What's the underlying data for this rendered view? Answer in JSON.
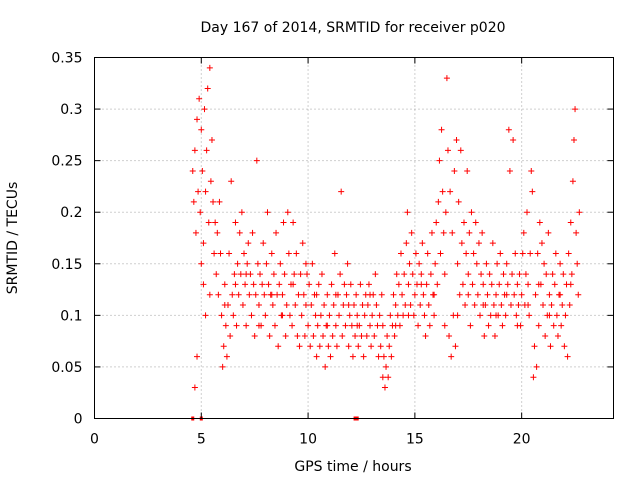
{
  "chart_data": {
    "type": "scatter",
    "title": "Day 167 of 2014, SRMTID for receiver p020",
    "xlabel": "GPS time / hours",
    "ylabel": "SRMTID / TECUs",
    "xlim": [
      0,
      24.3
    ],
    "ylim": [
      0,
      0.35
    ],
    "xticks": [
      0,
      5,
      10,
      15,
      20
    ],
    "xtick_labels": [
      "0",
      "5",
      "10",
      "15",
      "20"
    ],
    "yticks": [
      0,
      0.05,
      0.1,
      0.15,
      0.2,
      0.25,
      0.3,
      0.35
    ],
    "ytick_labels": [
      "0",
      "0.05",
      "0.1",
      "0.15",
      "0.2",
      "0.25",
      "0.3",
      "0.35"
    ],
    "grid": true,
    "marker": "plus",
    "series_color": "#ff0000",
    "points": [
      [
        4.6,
        0.24
      ],
      [
        4.65,
        0.21
      ],
      [
        4.7,
        0.26
      ],
      [
        4.75,
        0.18
      ],
      [
        4.8,
        0.29
      ],
      [
        4.85,
        0.22
      ],
      [
        4.9,
        0.31
      ],
      [
        4.95,
        0.2
      ],
      [
        5.0,
        0.28
      ],
      [
        5.05,
        0.24
      ],
      [
        5.1,
        0.17
      ],
      [
        5.15,
        0.3
      ],
      [
        5.2,
        0.22
      ],
      [
        5.25,
        0.26
      ],
      [
        5.3,
        0.32
      ],
      [
        5.35,
        0.19
      ],
      [
        5.4,
        0.34
      ],
      [
        5.45,
        0.23
      ],
      [
        5.5,
        0.27
      ],
      [
        5.55,
        0.21
      ],
      [
        5.6,
        0.16
      ],
      [
        5.65,
        0.19
      ],
      [
        5.7,
        0.14
      ],
      [
        5.75,
        0.18
      ],
      [
        5.8,
        0.12
      ],
      [
        5.85,
        0.21
      ],
      [
        5.9,
        0.16
      ],
      [
        5.95,
        0.1
      ],
      [
        6.0,
        0.05
      ],
      [
        6.05,
        0.07
      ],
      [
        6.1,
        0.13
      ],
      [
        6.15,
        0.09
      ],
      [
        6.2,
        0.06
      ],
      [
        6.25,
        0.11
      ],
      [
        6.3,
        0.16
      ],
      [
        6.35,
        0.08
      ],
      [
        6.4,
        0.23
      ],
      [
        6.45,
        0.12
      ],
      [
        6.5,
        0.1
      ],
      [
        6.55,
        0.14
      ],
      [
        6.6,
        0.19
      ],
      [
        6.65,
        0.09
      ],
      [
        6.7,
        0.15
      ],
      [
        6.75,
        0.12
      ],
      [
        6.8,
        0.18
      ],
      [
        6.85,
        0.14
      ],
      [
        6.9,
        0.2
      ],
      [
        6.95,
        0.11
      ],
      [
        7.0,
        0.16
      ],
      [
        7.05,
        0.13
      ],
      [
        7.1,
        0.09
      ],
      [
        7.15,
        0.15
      ],
      [
        7.2,
        0.17
      ],
      [
        7.25,
        0.12
      ],
      [
        7.3,
        0.14
      ],
      [
        7.35,
        0.1
      ],
      [
        7.4,
        0.18
      ],
      [
        7.45,
        0.13
      ],
      [
        7.5,
        0.08
      ],
      [
        7.55,
        0.12
      ],
      [
        7.6,
        0.25
      ],
      [
        7.65,
        0.15
      ],
      [
        7.7,
        0.11
      ],
      [
        7.75,
        0.14
      ],
      [
        7.8,
        0.09
      ],
      [
        7.85,
        0.13
      ],
      [
        7.9,
        0.17
      ],
      [
        7.95,
        0.12
      ],
      [
        8.0,
        0.1
      ],
      [
        8.05,
        0.15
      ],
      [
        8.1,
        0.2
      ],
      [
        8.15,
        0.13
      ],
      [
        8.2,
        0.08
      ],
      [
        8.25,
        0.12
      ],
      [
        8.3,
        0.16
      ],
      [
        8.35,
        0.11
      ],
      [
        8.4,
        0.14
      ],
      [
        8.45,
        0.09
      ],
      [
        8.5,
        0.18
      ],
      [
        8.55,
        0.12
      ],
      [
        8.6,
        0.07
      ],
      [
        8.65,
        0.13
      ],
      [
        8.7,
        0.15
      ],
      [
        8.75,
        0.1
      ],
      [
        8.8,
        0.12
      ],
      [
        8.85,
        0.19
      ],
      [
        8.9,
        0.14
      ],
      [
        8.95,
        0.08
      ],
      [
        9.0,
        0.11
      ],
      [
        9.05,
        0.2
      ],
      [
        9.1,
        0.16
      ],
      [
        9.15,
        0.1
      ],
      [
        9.2,
        0.13
      ],
      [
        9.25,
        0.09
      ],
      [
        9.3,
        0.19
      ],
      [
        9.35,
        0.14
      ],
      [
        9.4,
        0.11
      ],
      [
        9.45,
        0.16
      ],
      [
        9.5,
        0.08
      ],
      [
        9.55,
        0.12
      ],
      [
        9.6,
        0.07
      ],
      [
        9.65,
        0.14
      ],
      [
        9.7,
        0.1
      ],
      [
        9.75,
        0.17
      ],
      [
        9.8,
        0.12
      ],
      [
        9.85,
        0.08
      ],
      [
        9.9,
        0.11
      ],
      [
        9.95,
        0.14
      ],
      [
        10.0,
        0.09
      ],
      [
        10.05,
        0.13
      ],
      [
        10.1,
        0.07
      ],
      [
        10.15,
        0.11
      ],
      [
        10.2,
        0.15
      ],
      [
        10.25,
        0.08
      ],
      [
        10.3,
        0.12
      ],
      [
        10.35,
        0.1
      ],
      [
        10.4,
        0.06
      ],
      [
        10.45,
        0.09
      ],
      [
        10.5,
        0.13
      ],
      [
        10.55,
        0.07
      ],
      [
        10.6,
        0.1
      ],
      [
        10.65,
        0.14
      ],
      [
        10.7,
        0.08
      ],
      [
        10.75,
        0.11
      ],
      [
        10.8,
        0.05
      ],
      [
        10.85,
        0.09
      ],
      [
        10.9,
        0.12
      ],
      [
        10.95,
        0.07
      ],
      [
        11.0,
        0.1
      ],
      [
        11.05,
        0.06
      ],
      [
        11.1,
        0.13
      ],
      [
        11.15,
        0.08
      ],
      [
        11.2,
        0.11
      ],
      [
        11.25,
        0.16
      ],
      [
        11.3,
        0.09
      ],
      [
        11.35,
        0.07
      ],
      [
        11.4,
        0.12
      ],
      [
        11.45,
        0.1
      ],
      [
        11.5,
        0.14
      ],
      [
        11.55,
        0.22
      ],
      [
        11.6,
        0.08
      ],
      [
        11.65,
        0.11
      ],
      [
        11.7,
        0.13
      ],
      [
        11.75,
        0.09
      ],
      [
        11.8,
        0.12
      ],
      [
        11.85,
        0.15
      ],
      [
        11.9,
        0.07
      ],
      [
        11.95,
        0.1
      ],
      [
        12.0,
        0.13
      ],
      [
        12.05,
        0.09
      ],
      [
        12.1,
        0.06
      ],
      [
        12.15,
        0.11
      ],
      [
        12.2,
        0.08
      ],
      [
        12.25,
        0.12
      ],
      [
        12.3,
        0.1
      ],
      [
        12.35,
        0.07
      ],
      [
        12.4,
        0.09
      ],
      [
        12.45,
        0.13
      ],
      [
        12.5,
        0.08
      ],
      [
        12.55,
        0.11
      ],
      [
        12.6,
        0.06
      ],
      [
        12.65,
        0.1
      ],
      [
        12.7,
        0.12
      ],
      [
        12.75,
        0.08
      ],
      [
        12.8,
        0.11
      ],
      [
        12.85,
        0.13
      ],
      [
        12.9,
        0.09
      ],
      [
        12.95,
        0.07
      ],
      [
        13.0,
        0.1
      ],
      [
        13.05,
        0.12
      ],
      [
        13.1,
        0.08
      ],
      [
        13.15,
        0.14
      ],
      [
        13.2,
        0.11
      ],
      [
        13.25,
        0.09
      ],
      [
        13.3,
        0.06
      ],
      [
        13.35,
        0.1
      ],
      [
        13.4,
        0.07
      ],
      [
        13.45,
        0.12
      ],
      [
        13.5,
        0.04
      ],
      [
        13.55,
        0.06
      ],
      [
        13.6,
        0.03
      ],
      [
        13.65,
        0.05
      ],
      [
        13.7,
        0.08
      ],
      [
        13.75,
        0.04
      ],
      [
        13.8,
        0.07
      ],
      [
        13.85,
        0.1
      ],
      [
        13.9,
        0.06
      ],
      [
        13.95,
        0.09
      ],
      [
        14.0,
        0.12
      ],
      [
        14.05,
        0.08
      ],
      [
        14.1,
        0.11
      ],
      [
        14.15,
        0.14
      ],
      [
        14.2,
        0.1
      ],
      [
        14.25,
        0.13
      ],
      [
        14.3,
        0.09
      ],
      [
        14.35,
        0.16
      ],
      [
        14.4,
        0.12
      ],
      [
        14.45,
        0.1
      ],
      [
        14.5,
        0.14
      ],
      [
        14.55,
        0.11
      ],
      [
        14.6,
        0.17
      ],
      [
        14.65,
        0.2
      ],
      [
        14.7,
        0.13
      ],
      [
        14.75,
        0.15
      ],
      [
        14.8,
        0.11
      ],
      [
        14.85,
        0.18
      ],
      [
        14.9,
        0.14
      ],
      [
        14.95,
        0.1
      ],
      [
        15.0,
        0.12
      ],
      [
        15.05,
        0.16
      ],
      [
        15.1,
        0.13
      ],
      [
        15.15,
        0.09
      ],
      [
        15.2,
        0.15
      ],
      [
        15.25,
        0.11
      ],
      [
        15.3,
        0.14
      ],
      [
        15.35,
        0.17
      ],
      [
        15.4,
        0.12
      ],
      [
        15.45,
        0.1
      ],
      [
        15.5,
        0.08
      ],
      [
        15.55,
        0.13
      ],
      [
        15.6,
        0.16
      ],
      [
        15.65,
        0.11
      ],
      [
        15.7,
        0.09
      ],
      [
        15.75,
        0.14
      ],
      [
        15.8,
        0.18
      ],
      [
        15.85,
        0.12
      ],
      [
        15.9,
        0.1
      ],
      [
        15.95,
        0.15
      ],
      [
        16.0,
        0.19
      ],
      [
        16.05,
        0.13
      ],
      [
        16.1,
        0.21
      ],
      [
        16.15,
        0.25
      ],
      [
        16.2,
        0.16
      ],
      [
        16.25,
        0.28
      ],
      [
        16.3,
        0.22
      ],
      [
        16.35,
        0.18
      ],
      [
        16.4,
        0.14
      ],
      [
        16.45,
        0.2
      ],
      [
        16.5,
        0.33
      ],
      [
        16.55,
        0.26
      ],
      [
        16.6,
        0.08
      ],
      [
        16.65,
        0.22
      ],
      [
        16.7,
        0.06
      ],
      [
        16.75,
        0.18
      ],
      [
        16.8,
        0.1
      ],
      [
        16.85,
        0.24
      ],
      [
        16.9,
        0.07
      ],
      [
        16.95,
        0.27
      ],
      [
        17.0,
        0.15
      ],
      [
        17.05,
        0.21
      ],
      [
        17.1,
        0.12
      ],
      [
        17.15,
        0.26
      ],
      [
        17.2,
        0.17
      ],
      [
        17.25,
        0.13
      ],
      [
        17.3,
        0.19
      ],
      [
        17.35,
        0.11
      ],
      [
        17.4,
        0.16
      ],
      [
        17.45,
        0.24
      ],
      [
        17.5,
        0.14
      ],
      [
        17.55,
        0.18
      ],
      [
        17.6,
        0.09
      ],
      [
        17.65,
        0.2
      ],
      [
        17.7,
        0.13
      ],
      [
        17.75,
        0.16
      ],
      [
        17.8,
        0.11
      ],
      [
        17.85,
        0.19
      ],
      [
        17.9,
        0.15
      ],
      [
        17.95,
        0.12
      ],
      [
        18.0,
        0.17
      ],
      [
        18.05,
        0.1
      ],
      [
        18.1,
        0.14
      ],
      [
        18.15,
        0.18
      ],
      [
        18.2,
        0.13
      ],
      [
        18.25,
        0.08
      ],
      [
        18.3,
        0.11
      ],
      [
        18.35,
        0.15
      ],
      [
        18.4,
        0.12
      ],
      [
        18.45,
        0.09
      ],
      [
        18.5,
        0.14
      ],
      [
        18.55,
        0.1
      ],
      [
        18.6,
        0.13
      ],
      [
        18.65,
        0.17
      ],
      [
        18.7,
        0.11
      ],
      [
        18.75,
        0.08
      ],
      [
        18.8,
        0.12
      ],
      [
        18.85,
        0.15
      ],
      [
        18.9,
        0.1
      ],
      [
        18.95,
        0.13
      ],
      [
        19.0,
        0.16
      ],
      [
        19.05,
        0.11
      ],
      [
        19.1,
        0.09
      ],
      [
        19.15,
        0.14
      ],
      [
        19.2,
        0.12
      ],
      [
        19.25,
        0.1
      ],
      [
        19.3,
        0.15
      ],
      [
        19.35,
        0.13
      ],
      [
        19.4,
        0.28
      ],
      [
        19.45,
        0.24
      ],
      [
        19.5,
        0.11
      ],
      [
        19.55,
        0.14
      ],
      [
        19.6,
        0.27
      ],
      [
        19.65,
        0.12
      ],
      [
        19.7,
        0.16
      ],
      [
        19.75,
        0.1
      ],
      [
        19.8,
        0.13
      ],
      [
        19.85,
        0.11
      ],
      [
        19.9,
        0.14
      ],
      [
        19.95,
        0.09
      ],
      [
        20.0,
        0.12
      ],
      [
        20.05,
        0.16
      ],
      [
        20.1,
        0.18
      ],
      [
        20.15,
        0.11
      ],
      [
        20.2,
        0.14
      ],
      [
        20.25,
        0.2
      ],
      [
        20.3,
        0.13
      ],
      [
        20.35,
        0.1
      ],
      [
        20.4,
        0.16
      ],
      [
        20.45,
        0.24
      ],
      [
        20.5,
        0.22
      ],
      [
        20.55,
        0.04
      ],
      [
        20.6,
        0.07
      ],
      [
        20.65,
        0.12
      ],
      [
        20.7,
        0.05
      ],
      [
        20.75,
        0.16
      ],
      [
        20.8,
        0.09
      ],
      [
        20.85,
        0.19
      ],
      [
        20.9,
        0.13
      ],
      [
        20.95,
        0.17
      ],
      [
        21.0,
        0.11
      ],
      [
        21.05,
        0.15
      ],
      [
        21.1,
        0.08
      ],
      [
        21.15,
        0.14
      ],
      [
        21.2,
        0.1
      ],
      [
        21.25,
        0.18
      ],
      [
        21.3,
        0.12
      ],
      [
        21.35,
        0.07
      ],
      [
        21.4,
        0.11
      ],
      [
        21.45,
        0.14
      ],
      [
        21.5,
        0.09
      ],
      [
        21.55,
        0.13
      ],
      [
        21.6,
        0.16
      ],
      [
        21.65,
        0.1
      ],
      [
        21.7,
        0.08
      ],
      [
        21.75,
        0.12
      ],
      [
        21.8,
        0.15
      ],
      [
        21.85,
        0.09
      ],
      [
        21.9,
        0.11
      ],
      [
        21.95,
        0.14
      ],
      [
        22.0,
        0.07
      ],
      [
        22.05,
        0.1
      ],
      [
        22.1,
        0.13
      ],
      [
        22.15,
        0.06
      ],
      [
        22.2,
        0.16
      ],
      [
        22.25,
        0.11
      ],
      [
        22.3,
        0.19
      ],
      [
        22.35,
        0.14
      ],
      [
        22.4,
        0.23
      ],
      [
        22.45,
        0.27
      ],
      [
        22.5,
        0.3
      ],
      [
        22.55,
        0.18
      ],
      [
        5.0,
        0.15
      ],
      [
        5.2,
        0.1
      ],
      [
        5.4,
        0.12
      ],
      [
        6.1,
        0.11
      ],
      [
        6.6,
        0.13
      ],
      [
        7.1,
        0.14
      ],
      [
        7.7,
        0.09
      ],
      [
        8.3,
        0.12
      ],
      [
        8.8,
        0.1
      ],
      [
        9.3,
        0.13
      ],
      [
        9.9,
        0.15
      ],
      [
        10.4,
        0.12
      ],
      [
        10.9,
        0.09
      ],
      [
        11.3,
        0.12
      ],
      [
        11.9,
        0.11
      ],
      [
        12.3,
        0.09
      ],
      [
        12.9,
        0.12
      ],
      [
        13.5,
        0.09
      ],
      [
        14.1,
        0.09
      ],
      [
        14.7,
        0.1
      ],
      [
        15.3,
        0.13
      ],
      [
        15.9,
        0.12
      ],
      [
        16.4,
        0.09
      ],
      [
        17.0,
        0.1
      ],
      [
        17.5,
        0.12
      ],
      [
        18.2,
        0.11
      ],
      [
        18.8,
        0.1
      ],
      [
        19.3,
        0.12
      ],
      [
        19.8,
        0.09
      ],
      [
        20.3,
        0.11
      ],
      [
        20.8,
        0.13
      ],
      [
        21.3,
        0.1
      ],
      [
        21.8,
        0.12
      ],
      [
        22.3,
        0.13
      ],
      [
        22.6,
        0.15
      ],
      [
        22.65,
        0.12
      ],
      [
        22.7,
        0.2
      ],
      [
        4.7,
        0.03
      ],
      [
        4.8,
        0.06
      ],
      [
        5.1,
        0.13
      ]
    ],
    "zero_marks_x": [
      4.6,
      5.0,
      12.2,
      12.3
    ]
  }
}
